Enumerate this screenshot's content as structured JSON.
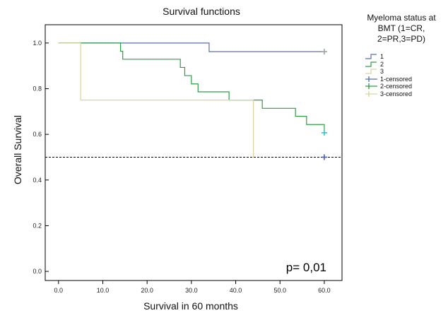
{
  "chart_data": {
    "type": "line",
    "title": "Survival functions",
    "xlabel": "Survival in 60 months",
    "ylabel": "Overall Survival",
    "xlim": [
      -3,
      64
    ],
    "ylim": [
      -0.04,
      1.08
    ],
    "xticks": [
      "0.0",
      "10.0",
      "20.0",
      "30.0",
      "40.0",
      "50.0",
      "60.0"
    ],
    "xtick_values": [
      0,
      10,
      20,
      30,
      40,
      50,
      60
    ],
    "yticks": [
      "0.0",
      "0.2",
      "0.4",
      "0.6",
      "0.8",
      "1.0"
    ],
    "ytick_values": [
      0,
      0.2,
      0.4,
      0.6,
      0.8,
      1.0
    ],
    "grid": false,
    "legend_placement": "right",
    "reference_line": {
      "y": 0.5,
      "style": "dashed"
    },
    "annotation": "p= 0,01",
    "series": [
      {
        "name": "1",
        "color": "#5b6eb0",
        "step": true,
        "x": [
          0,
          34,
          60
        ],
        "y": [
          1.0,
          0.962,
          0.962
        ],
        "censored": [
          [
            60,
            0.962
          ]
        ],
        "censor_color": "#a0a0a0"
      },
      {
        "name": "2",
        "color": "#2e9e45",
        "step": true,
        "x": [
          0,
          14,
          14.5,
          27.5,
          28.5,
          30,
          31.5,
          38.5,
          46,
          53.5,
          56,
          60
        ],
        "y": [
          1.0,
          0.964,
          0.929,
          0.893,
          0.857,
          0.821,
          0.786,
          0.75,
          0.714,
          0.679,
          0.643,
          0.607
        ],
        "censored": [
          [
            60,
            0.607
          ]
        ],
        "censor_color": "#35c7c7"
      },
      {
        "name": "3",
        "color": "#d9d3a0",
        "step": true,
        "x": [
          0,
          5,
          44,
          44
        ],
        "y": [
          1.0,
          0.75,
          0.5,
          0.5
        ],
        "censored": [
          [
            60,
            0.5
          ]
        ],
        "censor_color": "#4a5fa8"
      }
    ]
  },
  "legend": {
    "title": "Myeloma status at\nBMT (1=CR,\n2=PR,3=PD)",
    "items": [
      {
        "label": "1",
        "kind": "step",
        "color": "#5b6eb0"
      },
      {
        "label": "2",
        "kind": "step",
        "color": "#2e9e45"
      },
      {
        "label": "3",
        "kind": "step",
        "color": "#d9d3a0"
      },
      {
        "label": "1-censored",
        "kind": "censor",
        "color": "#5b6eb0"
      },
      {
        "label": "2-censored",
        "kind": "censor",
        "color": "#2e9e45"
      },
      {
        "label": "3-censored",
        "kind": "censor",
        "color": "#d9d3a0"
      }
    ]
  }
}
